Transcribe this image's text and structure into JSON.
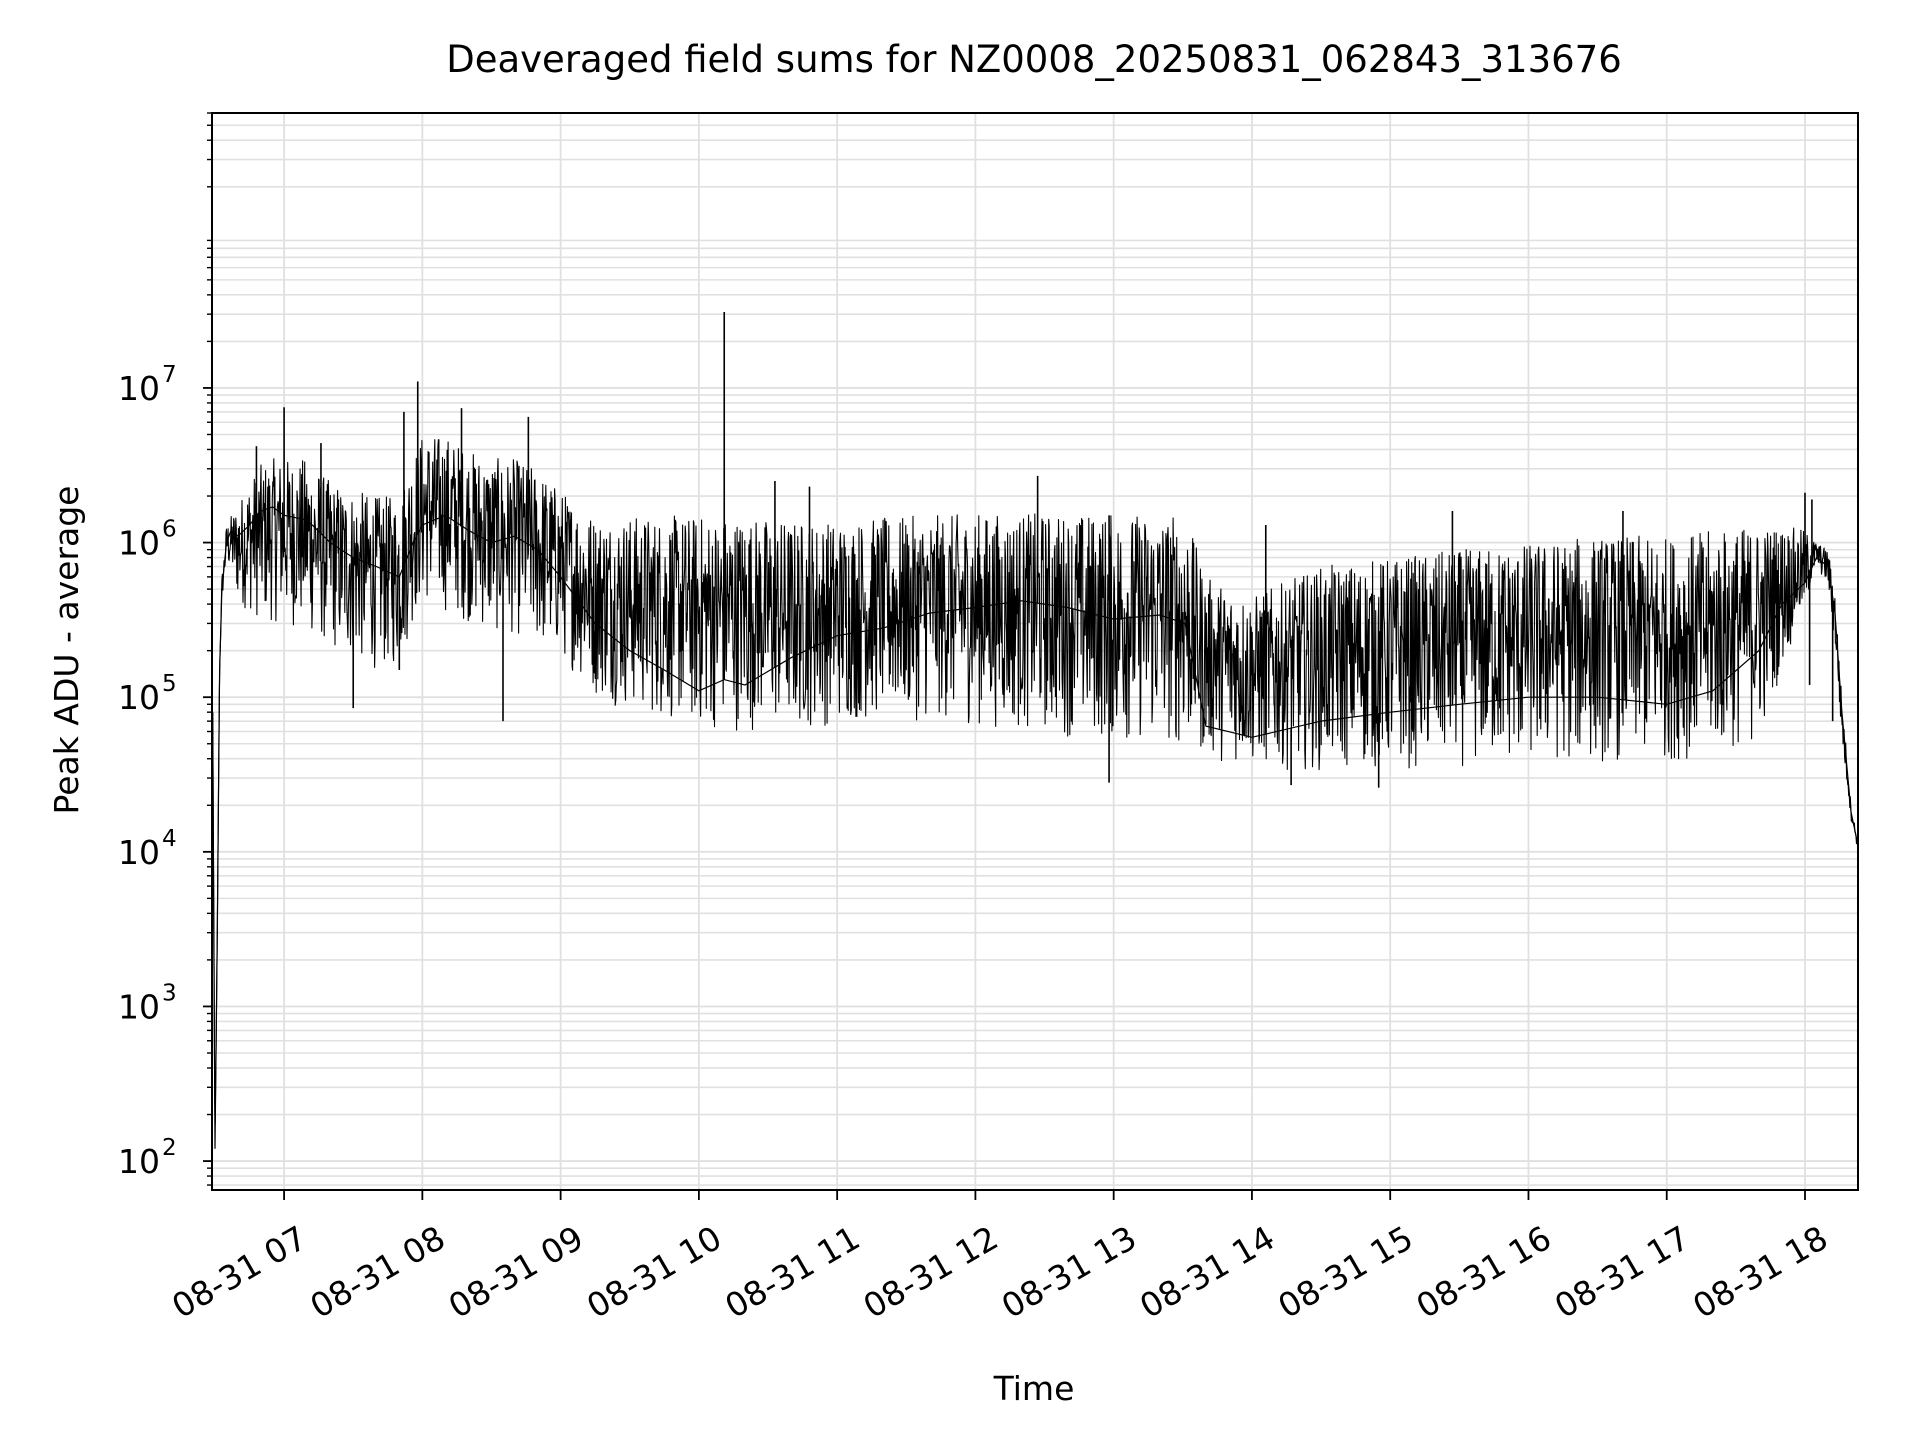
{
  "chart_data": {
    "type": "line",
    "title": "Deaveraged field sums for NZ0008_20250831_062843_313676",
    "xlabel": "Time",
    "ylabel": "Peak ADU - average",
    "yscale": "log",
    "ylim": [
      65,
      600000000
    ],
    "xlim": [
      "2025-08-31 06:28:43",
      "2025-08-31 18:23:00"
    ],
    "grid": true,
    "grid_minor": true,
    "line_color": "#000000",
    "grid_color": "#e0e0e0",
    "x_ticks": [
      "2025-08-31 07:00",
      "2025-08-31 08:00",
      "2025-08-31 09:00",
      "2025-08-31 10:00",
      "2025-08-31 11:00",
      "2025-08-31 12:00",
      "2025-08-31 13:00",
      "2025-08-31 14:00",
      "2025-08-31 15:00",
      "2025-08-31 16:00",
      "2025-08-31 17:00",
      "2025-08-31 18:00"
    ],
    "x_tick_labels": [
      "08-31 07",
      "08-31 08",
      "08-31 09",
      "08-31 10",
      "08-31 11",
      "08-31 12",
      "08-31 13",
      "08-31 14",
      "08-31 15",
      "08-31 16",
      "08-31 17",
      "08-31 18"
    ],
    "y_ticks": [
      {
        "value": 100,
        "base": "10",
        "exp": "2"
      },
      {
        "value": 1000,
        "base": "10",
        "exp": "3"
      },
      {
        "value": 10000,
        "base": "10",
        "exp": "4"
      },
      {
        "value": 100000,
        "base": "10",
        "exp": "5"
      },
      {
        "value": 1000000,
        "base": "10",
        "exp": "6"
      },
      {
        "value": 10000000,
        "base": "10",
        "exp": "7"
      }
    ],
    "series": [
      {
        "x": [
          "2025-08-31 06:29",
          "2025-08-31 06:30",
          "2025-08-31 06:31",
          "2025-08-31 06:32",
          "2025-08-31 06:33",
          "2025-08-31 06:35",
          "2025-08-31 06:37",
          "2025-08-31 06:40",
          "2025-08-31 06:45",
          "2025-08-31 06:50",
          "2025-08-31 06:55",
          "2025-08-31 07:00",
          "2025-08-31 07:10",
          "2025-08-31 07:20",
          "2025-08-31 07:30",
          "2025-08-31 07:40",
          "2025-08-31 07:50",
          "2025-08-31 07:56",
          "2025-08-31 08:00",
          "2025-08-31 08:10",
          "2025-08-31 08:20",
          "2025-08-31 08:30",
          "2025-08-31 08:40",
          "2025-08-31 08:50",
          "2025-08-31 09:00",
          "2025-08-31 09:15",
          "2025-08-31 09:30",
          "2025-08-31 09:45",
          "2025-08-31 10:00",
          "2025-08-31 10:11",
          "2025-08-31 10:20",
          "2025-08-31 10:40",
          "2025-08-31 11:00",
          "2025-08-31 11:20",
          "2025-08-31 11:40",
          "2025-08-31 12:00",
          "2025-08-31 12:20",
          "2025-08-31 12:40",
          "2025-08-31 13:00",
          "2025-08-31 13:20",
          "2025-08-31 13:31",
          "2025-08-31 13:40",
          "2025-08-31 14:00",
          "2025-08-31 14:30",
          "2025-08-31 15:00",
          "2025-08-31 15:30",
          "2025-08-31 16:00",
          "2025-08-31 16:30",
          "2025-08-31 17:00",
          "2025-08-31 17:20",
          "2025-08-31 17:40",
          "2025-08-31 17:50",
          "2025-08-31 18:00",
          "2025-08-31 18:05",
          "2025-08-31 18:10",
          "2025-08-31 18:13",
          "2025-08-31 18:16",
          "2025-08-31 18:20",
          "2025-08-31 18:23"
        ],
        "y": [
          80000,
          120,
          3000,
          150000,
          500000,
          1000000,
          1200000,
          1100000,
          1300000,
          1600000,
          1700000,
          1500000,
          1400000,
          1000000,
          800000,
          700000,
          600000,
          1000000,
          1300000,
          1500000,
          1200000,
          1000000,
          1100000,
          900000,
          600000,
          300000,
          200000,
          150000,
          110000,
          130000,
          120000,
          180000,
          250000,
          280000,
          350000,
          380000,
          420000,
          380000,
          320000,
          340000,
          300000,
          65000,
          55000,
          70000,
          80000,
          90000,
          100000,
          100000,
          90000,
          110000,
          200000,
          400000,
          550000,
          800000,
          700000,
          350000,
          80000,
          18000,
          11000
        ],
        "y_low": [
          80000,
          120,
          3000,
          150000,
          400000,
          700000,
          600000,
          400000,
          350000,
          300000,
          300000,
          300000,
          250000,
          200000,
          160000,
          150000,
          150000,
          300000,
          400000,
          350000,
          300000,
          250000,
          250000,
          200000,
          180000,
          100000,
          80000,
          70000,
          60000,
          60000,
          60000,
          60000,
          65000,
          70000,
          70000,
          65000,
          60000,
          55000,
          50000,
          50000,
          45000,
          40000,
          35000,
          33000,
          33000,
          35000,
          36000,
          37000,
          38000,
          40000,
          50000,
          150000,
          350000,
          700000,
          500000,
          200000,
          50000,
          16000,
          10000
        ],
        "y_high": [
          80000,
          120,
          3000,
          150000,
          600000,
          1300000,
          1500000,
          1800000,
          2500000,
          3200000,
          3500000,
          3500000,
          3500000,
          2500000,
          2200000,
          2000000,
          2000000,
          4000000,
          5000000,
          5000000,
          4000000,
          3500000,
          3500000,
          3000000,
          2200000,
          1500000,
          1500000,
          1500000,
          1500000,
          1500000,
          1500000,
          1400000,
          1400000,
          1450000,
          1500000,
          1550000,
          1550000,
          1550000,
          1550000,
          1550000,
          1550000,
          600000,
          450000,
          700000,
          800000,
          900000,
          1000000,
          1100000,
          1100000,
          1200000,
          1300000,
          1300000,
          1200000,
          1000000,
          900000,
          500000,
          100000,
          20000,
          12000
        ]
      }
    ],
    "spikes": [
      {
        "x": "2025-08-31 10:11",
        "y": 31000000
      },
      {
        "x": "2025-08-31 07:58",
        "y": 11000000
      },
      {
        "x": "2025-08-31 07:00",
        "y": 7500000
      },
      {
        "x": "2025-08-31 08:17",
        "y": 7400000
      },
      {
        "x": "2025-08-31 08:46",
        "y": 6500000
      },
      {
        "x": "2025-08-31 07:52",
        "y": 7000000
      },
      {
        "x": "2025-08-31 06:48",
        "y": 4200000
      },
      {
        "x": "2025-08-31 07:16",
        "y": 4400000
      },
      {
        "x": "2025-08-31 12:27",
        "y": 2700000
      },
      {
        "x": "2025-08-31 10:33",
        "y": 2500000
      },
      {
        "x": "2025-08-31 10:48",
        "y": 2300000
      },
      {
        "x": "2025-08-31 18:00",
        "y": 2100000
      },
      {
        "x": "2025-08-31 18:03",
        "y": 1900000
      },
      {
        "x": "2025-08-31 15:27",
        "y": 1600000
      },
      {
        "x": "2025-08-31 16:41",
        "y": 1600000
      },
      {
        "x": "2025-08-31 12:58",
        "y": 1500000
      },
      {
        "x": "2025-08-31 14:06",
        "y": 1300000
      },
      {
        "x": "2025-08-31 08:35",
        "y": 70000
      },
      {
        "x": "2025-08-31 07:50",
        "y": 150000
      },
      {
        "x": "2025-08-31 07:30",
        "y": 85000
      },
      {
        "x": "2025-08-31 12:58",
        "y": 28000
      },
      {
        "x": "2025-08-31 18:02",
        "y": 120000
      },
      {
        "x": "2025-08-31 18:12",
        "y": 70000
      },
      {
        "x": "2025-08-31 14:55",
        "y": 26000
      },
      {
        "x": "2025-08-31 14:17",
        "y": 27000
      }
    ]
  }
}
